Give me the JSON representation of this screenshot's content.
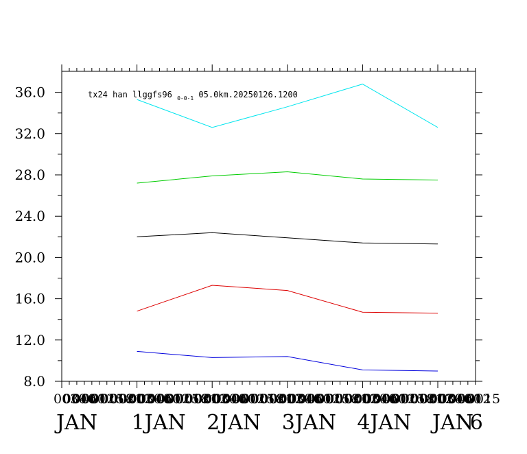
{
  "chart_data": {
    "type": "line",
    "title": "tx24 han llggfs96",
    "title_subscript": "0-0-1",
    "title_suffix": "05.0km.20250126.1200",
    "ylim": [
      8.0,
      37.8
    ],
    "xlim": [
      0,
      5.5
    ],
    "y_tick_labels": [
      "8.0",
      "12.0",
      "16.0",
      "20.0",
      "24.0",
      "28.0",
      "32.0",
      "36.0"
    ],
    "y_tick_values": [
      8,
      12,
      16,
      20,
      24,
      28,
      32,
      36
    ],
    "x_day_labels": [
      {
        "x": 0,
        "text": "JAN"
      },
      {
        "x": 1,
        "text": "1JAN"
      },
      {
        "x": 2,
        "text": "2JAN"
      },
      {
        "x": 3,
        "text": "3JAN"
      },
      {
        "x": 4,
        "text": "4JAN"
      },
      {
        "x": 5,
        "text": "JAN"
      },
      {
        "x": 5.5,
        "text": "6"
      }
    ],
    "x_overlap_labels": [
      "0030",
      "0040",
      "0060",
      "0012",
      "0015",
      "0018",
      "0021",
      "0002"
    ],
    "x": [
      1,
      2,
      3,
      4,
      5
    ],
    "series": [
      {
        "color": "#00e5ee",
        "values": [
          35.3,
          32.6,
          34.6,
          36.8,
          32.6
        ]
      },
      {
        "color": "#00cc00",
        "values": [
          27.2,
          27.9,
          28.3,
          27.6,
          27.5
        ]
      },
      {
        "color": "#000000",
        "values": [
          22.0,
          22.4,
          21.9,
          21.4,
          21.3
        ]
      },
      {
        "color": "#dd0000",
        "values": [
          14.8,
          17.3,
          16.8,
          14.7,
          14.6
        ]
      },
      {
        "color": "#0000dd",
        "values": [
          10.9,
          10.3,
          10.4,
          9.1,
          9.0
        ]
      }
    ],
    "grid": false
  }
}
